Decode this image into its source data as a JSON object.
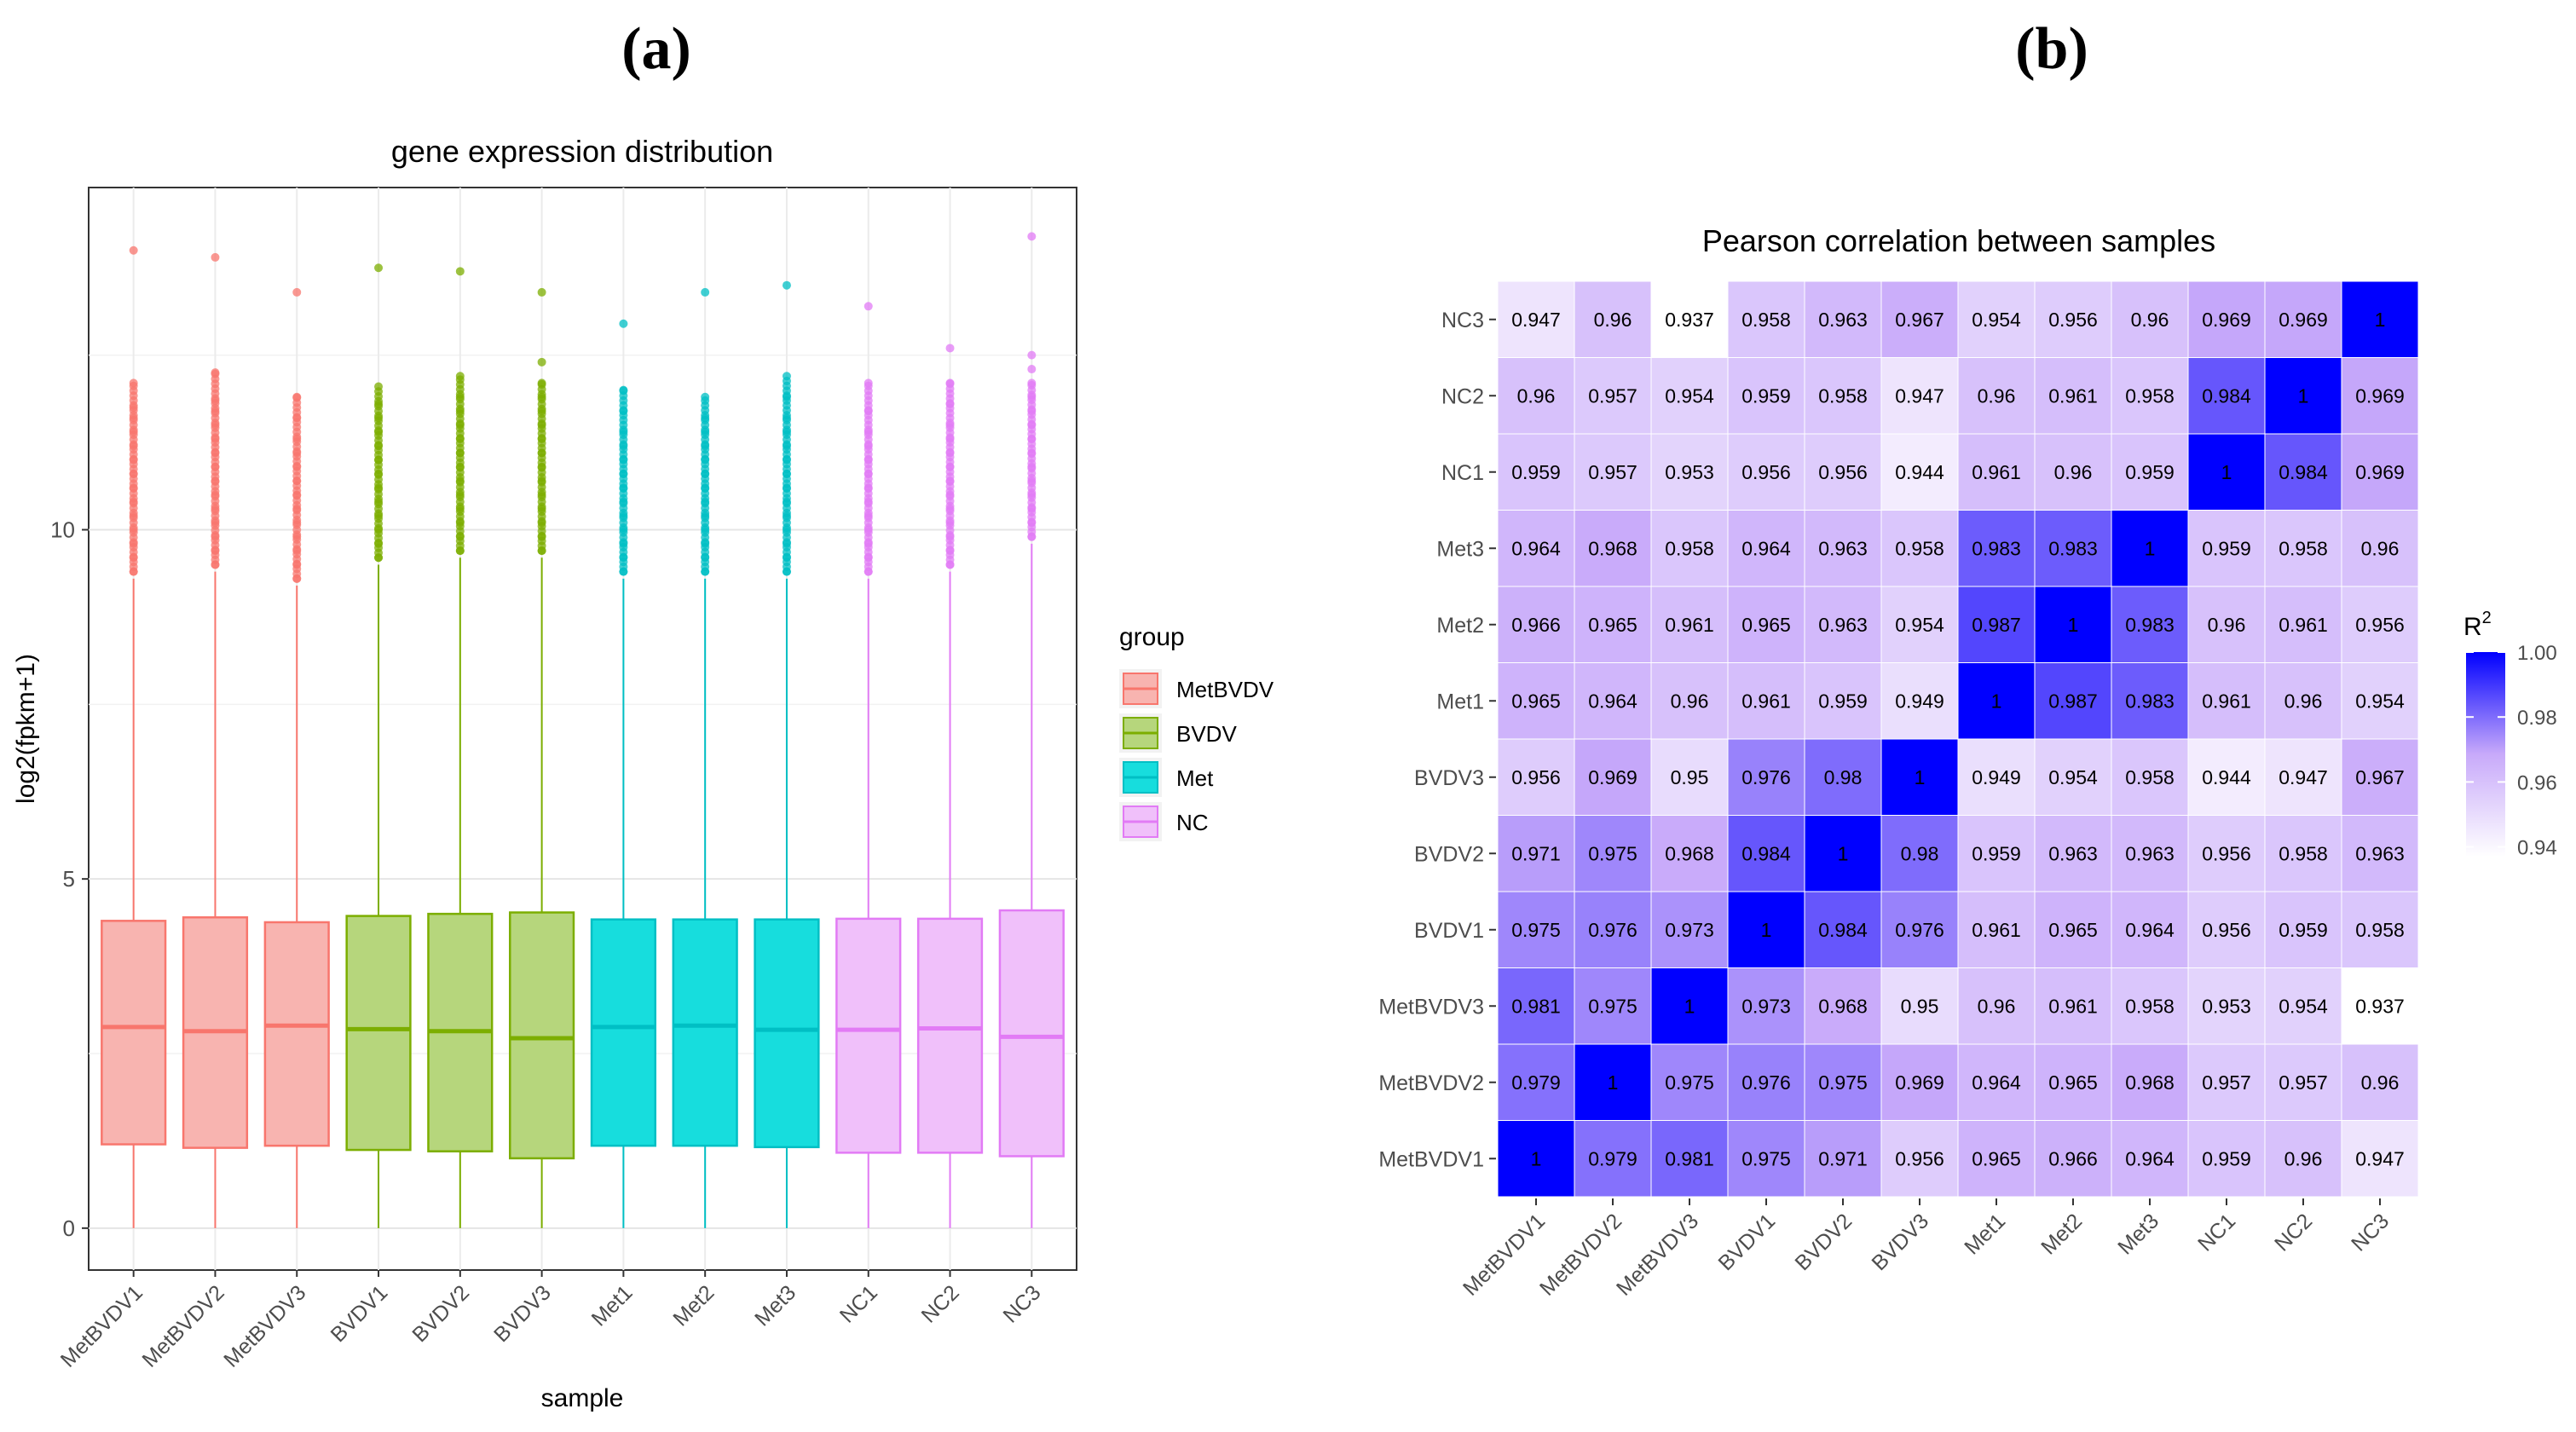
{
  "panel_labels": [
    "(a)",
    "(b)"
  ],
  "chart_data": [
    {
      "type": "boxplot",
      "panel": "(a)",
      "title": "gene expression distribution",
      "xlabel": "sample",
      "ylabel": "log2(fpkm+1)",
      "ylim": [
        -0.6,
        14.9
      ],
      "yticks": [
        0,
        5,
        10
      ],
      "grid": true,
      "legend": {
        "title": "group",
        "position": "right",
        "entries": [
          {
            "name": "MetBVDV",
            "fill": "#f8b4b0",
            "stroke": "#f8766d"
          },
          {
            "name": "BVDV",
            "fill": "#b6d67c",
            "stroke": "#7cae00"
          },
          {
            "name": "Met",
            "fill": "#17dddd",
            "stroke": "#00bfc4"
          },
          {
            "name": "NC",
            "fill": "#f0c0fa",
            "stroke": "#e27bf5"
          }
        ]
      },
      "categories": [
        "MetBVDV1",
        "MetBVDV2",
        "MetBVDV3",
        "BVDV1",
        "BVDV2",
        "BVDV3",
        "Met1",
        "Met2",
        "Met3",
        "NC1",
        "NC2",
        "NC3"
      ],
      "groups": [
        "MetBVDV",
        "MetBVDV",
        "MetBVDV",
        "BVDV",
        "BVDV",
        "BVDV",
        "Met",
        "Met",
        "Met",
        "NC",
        "NC",
        "NC"
      ],
      "boxes": [
        {
          "min": 0,
          "q1": 1.2,
          "median": 2.88,
          "q3": 4.4,
          "max": 9.3,
          "outliers": [
            9.4,
            9.6,
            9.8,
            10.0,
            10.2,
            10.4,
            10.6,
            10.8,
            11.0,
            11.2,
            11.4,
            11.6,
            11.75,
            12.1,
            14.0
          ]
        },
        {
          "min": 0,
          "q1": 1.15,
          "median": 2.82,
          "q3": 4.45,
          "max": 9.4,
          "outliers": [
            9.5,
            9.7,
            9.9,
            10.1,
            10.3,
            10.5,
            10.7,
            10.9,
            11.1,
            11.3,
            11.5,
            11.7,
            11.85,
            12.25,
            13.9
          ]
        },
        {
          "min": 0,
          "q1": 1.18,
          "median": 2.9,
          "q3": 4.38,
          "max": 9.2,
          "outliers": [
            9.3,
            9.5,
            9.7,
            9.9,
            10.1,
            10.3,
            10.5,
            10.7,
            10.9,
            11.1,
            11.3,
            11.6,
            11.9,
            13.4
          ]
        },
        {
          "min": 0,
          "q1": 1.12,
          "median": 2.85,
          "q3": 4.47,
          "max": 9.5,
          "outliers": [
            9.6,
            9.8,
            10.0,
            10.2,
            10.4,
            10.6,
            10.8,
            11.0,
            11.2,
            11.4,
            11.6,
            11.8,
            12.05,
            13.75
          ]
        },
        {
          "min": 0,
          "q1": 1.1,
          "median": 2.82,
          "q3": 4.5,
          "max": 9.6,
          "outliers": [
            9.7,
            9.9,
            10.1,
            10.3,
            10.5,
            10.7,
            10.9,
            11.1,
            11.3,
            11.5,
            11.7,
            11.9,
            12.2,
            13.7
          ]
        },
        {
          "min": 0,
          "q1": 1.0,
          "median": 2.72,
          "q3": 4.52,
          "max": 9.6,
          "outliers": [
            9.7,
            9.9,
            10.1,
            10.3,
            10.5,
            10.7,
            10.9,
            11.1,
            11.3,
            11.5,
            11.7,
            11.9,
            12.1,
            12.4,
            13.4
          ]
        },
        {
          "min": 0,
          "q1": 1.18,
          "median": 2.88,
          "q3": 4.42,
          "max": 9.3,
          "outliers": [
            9.4,
            9.6,
            9.8,
            10.0,
            10.2,
            10.4,
            10.6,
            10.8,
            11.0,
            11.2,
            11.4,
            11.7,
            12.0,
            12.95
          ]
        },
        {
          "min": 0,
          "q1": 1.18,
          "median": 2.9,
          "q3": 4.42,
          "max": 9.3,
          "outliers": [
            9.4,
            9.6,
            9.8,
            10.0,
            10.2,
            10.4,
            10.6,
            10.8,
            11.0,
            11.2,
            11.4,
            11.6,
            11.9,
            13.4
          ]
        },
        {
          "min": 0,
          "q1": 1.16,
          "median": 2.84,
          "q3": 4.42,
          "max": 9.3,
          "outliers": [
            9.4,
            9.6,
            9.8,
            10.0,
            10.2,
            10.4,
            10.6,
            10.8,
            11.0,
            11.2,
            11.4,
            11.6,
            11.9,
            12.2,
            13.5
          ]
        },
        {
          "min": 0,
          "q1": 1.08,
          "median": 2.84,
          "q3": 4.43,
          "max": 9.3,
          "outliers": [
            9.4,
            9.6,
            9.8,
            10.0,
            10.2,
            10.4,
            10.6,
            10.8,
            11.0,
            11.2,
            11.4,
            11.7,
            12.1,
            13.2
          ]
        },
        {
          "min": 0,
          "q1": 1.08,
          "median": 2.86,
          "q3": 4.43,
          "max": 9.4,
          "outliers": [
            9.5,
            9.7,
            9.9,
            10.1,
            10.3,
            10.5,
            10.7,
            10.9,
            11.1,
            11.3,
            11.5,
            11.8,
            12.1,
            12.6
          ]
        },
        {
          "min": 0,
          "q1": 1.03,
          "median": 2.74,
          "q3": 4.55,
          "max": 9.8,
          "outliers": [
            9.9,
            10.1,
            10.3,
            10.5,
            10.7,
            10.9,
            11.1,
            11.3,
            11.5,
            11.7,
            11.9,
            12.1,
            12.3,
            12.5,
            14.2
          ]
        }
      ]
    },
    {
      "type": "heatmap",
      "panel": "(b)",
      "title": "Pearson correlation between samples",
      "x": [
        "MetBVDV1",
        "MetBVDV2",
        "MetBVDV3",
        "BVDV1",
        "BVDV2",
        "BVDV3",
        "Met1",
        "Met2",
        "Met3",
        "NC1",
        "NC2",
        "NC3"
      ],
      "y": [
        "MetBVDV1",
        "MetBVDV2",
        "MetBVDV3",
        "BVDV1",
        "BVDV2",
        "BVDV3",
        "Met1",
        "Met2",
        "Met3",
        "NC1",
        "NC2",
        "NC3"
      ],
      "values": [
        [
          "1",
          "0.979",
          "0.981",
          "0.975",
          "0.971",
          "0.956",
          "0.965",
          "0.966",
          "0.964",
          "0.959",
          "0.96",
          "0.947"
        ],
        [
          "0.979",
          "1",
          "0.975",
          "0.976",
          "0.975",
          "0.969",
          "0.964",
          "0.965",
          "0.968",
          "0.957",
          "0.957",
          "0.96"
        ],
        [
          "0.981",
          "0.975",
          "1",
          "0.973",
          "0.968",
          "0.95",
          "0.96",
          "0.961",
          "0.958",
          "0.953",
          "0.954",
          "0.937"
        ],
        [
          "0.975",
          "0.976",
          "0.973",
          "1",
          "0.984",
          "0.976",
          "0.961",
          "0.965",
          "0.964",
          "0.956",
          "0.959",
          "0.958"
        ],
        [
          "0.971",
          "0.975",
          "0.968",
          "0.984",
          "1",
          "0.98",
          "0.959",
          "0.963",
          "0.963",
          "0.956",
          "0.958",
          "0.963"
        ],
        [
          "0.956",
          "0.969",
          "0.95",
          "0.976",
          "0.98",
          "1",
          "0.949",
          "0.954",
          "0.958",
          "0.944",
          "0.947",
          "0.967"
        ],
        [
          "0.965",
          "0.964",
          "0.96",
          "0.961",
          "0.959",
          "0.949",
          "1",
          "0.987",
          "0.983",
          "0.961",
          "0.96",
          "0.954"
        ],
        [
          "0.966",
          "0.965",
          "0.961",
          "0.965",
          "0.963",
          "0.954",
          "0.987",
          "1",
          "0.983",
          "0.96",
          "0.961",
          "0.956"
        ],
        [
          "0.964",
          "0.968",
          "0.958",
          "0.964",
          "0.963",
          "0.958",
          "0.983",
          "0.983",
          "1",
          "0.959",
          "0.958",
          "0.96"
        ],
        [
          "0.959",
          "0.957",
          "0.953",
          "0.956",
          "0.956",
          "0.944",
          "0.961",
          "0.96",
          "0.959",
          "1",
          "0.984",
          "0.969"
        ],
        [
          "0.96",
          "0.957",
          "0.954",
          "0.959",
          "0.958",
          "0.947",
          "0.96",
          "0.961",
          "0.958",
          "0.984",
          "1",
          "0.969"
        ],
        [
          "0.947",
          "0.96",
          "0.937",
          "0.958",
          "0.963",
          "0.967",
          "0.954",
          "0.956",
          "0.96",
          "0.969",
          "0.969",
          "1"
        ]
      ],
      "colorbar": {
        "title": "R",
        "title_superscript": "2",
        "range": [
          0.937,
          1.0
        ],
        "ticks": [
          "1.00",
          "0.98",
          "0.96",
          "0.94"
        ],
        "tick_values": [
          1.0,
          0.98,
          0.96,
          0.94
        ],
        "low_color": "#ffffff",
        "high_color": "#0000ff"
      }
    }
  ]
}
